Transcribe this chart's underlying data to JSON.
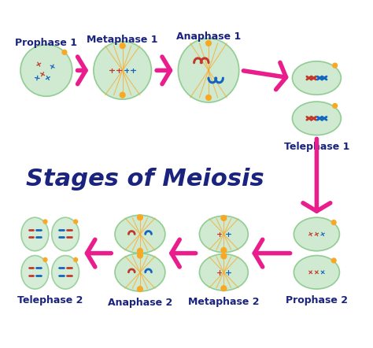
{
  "title": "Stages of Meiosis",
  "title_color": "#1a237e",
  "title_fontsize": 22,
  "bg_color": "#ffffff",
  "cell_color": "#c8e6c9",
  "cell_edge_color": "#81c784",
  "spindle_color": "#f9a825",
  "chr_red": "#c0392b",
  "chr_blue": "#1565c0",
  "arrow_color": "#e91e8c",
  "stages_row1": [
    "Prophase 1",
    "Metaphase 1",
    "Anaphase 1",
    "Telephase 1"
  ],
  "stages_row2": [
    "Prophase 2",
    "Metaphase 2",
    "Anaphase 2",
    "Telephase 2"
  ],
  "label_color": "#1a237e",
  "label_fontsize": 9
}
